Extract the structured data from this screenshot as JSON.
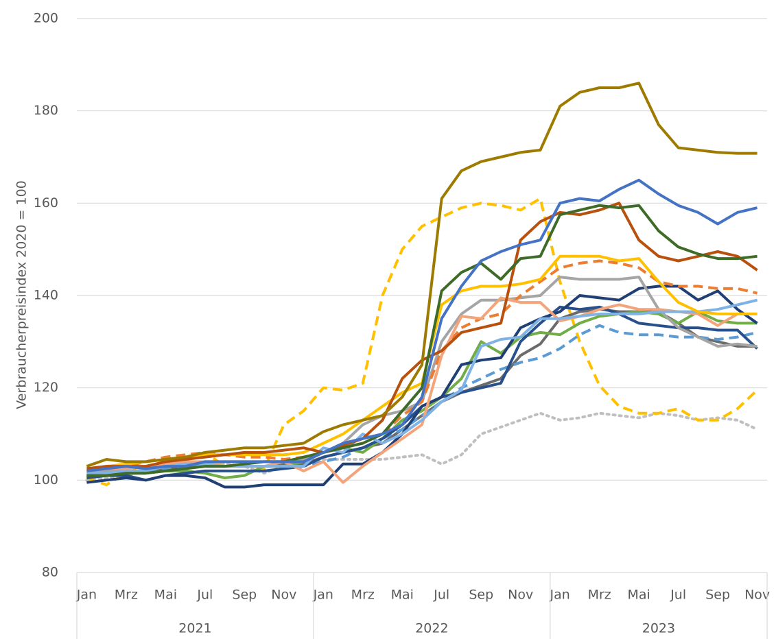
{
  "chart_data": {
    "type": "line",
    "y_label": "Verbraucherpreisindex 2020 = 100",
    "categories": [
      "Jan",
      null,
      "Mrz",
      null,
      "Mai",
      null,
      "Jul",
      null,
      "Sep",
      null,
      "Nov",
      null,
      "Jan",
      null,
      "Mrz",
      null,
      "Mai",
      null,
      "Jul",
      null,
      "Sep",
      null,
      "Nov",
      null,
      "Jan",
      null,
      "Mrz",
      null,
      "Mai",
      null,
      "Jul",
      null,
      "Sep",
      null,
      "Nov"
    ],
    "groups": [
      "2021",
      "2022",
      "2023"
    ],
    "ylim": [
      80,
      200
    ],
    "yticks": [
      80,
      100,
      120,
      140,
      160,
      180,
      200
    ],
    "grid": true,
    "series": [
      {
        "color": "#bfbfbf",
        "dash": "dotted",
        "values": [
          100,
          100.5,
          101,
          102,
          102.5,
          103,
          103.5,
          103.5,
          103,
          101.5,
          103,
          104,
          104.5,
          104.5,
          104.5,
          104.5,
          105,
          105.5,
          103.5,
          105.5,
          110,
          111.5,
          113,
          114.5,
          113,
          113.5,
          114.5,
          114,
          113.5,
          114.5,
          114,
          113,
          113.5,
          113,
          111
        ]
      },
      {
        "color": "#ffc000",
        "dash": "dashed",
        "values": [
          100.5,
          99,
          101.5,
          103,
          104,
          104.5,
          106,
          103,
          103.5,
          102.5,
          112,
          115,
          120,
          119.5,
          121,
          140,
          150,
          155,
          157,
          159,
          160,
          159.5,
          158.5,
          161,
          143,
          130,
          120.5,
          116,
          114.5,
          114.5,
          115.5,
          113,
          113,
          115.5,
          119.5
        ]
      },
      {
        "color": "#6b6b6b",
        "dash": "solid",
        "values": [
          101,
          101.5,
          102,
          102,
          102.5,
          103,
          103,
          103,
          103,
          103,
          103.5,
          103.5,
          105,
          106,
          107,
          108,
          111,
          114,
          117,
          119,
          120.5,
          122,
          127,
          129.5,
          135,
          136.5,
          137,
          136.5,
          136.5,
          136.5,
          134,
          131,
          130,
          129,
          129
        ]
      },
      {
        "color": "#5b9bd5",
        "dash": "dashed",
        "values": [
          101,
          101,
          101.5,
          102,
          102.5,
          103,
          103,
          103,
          103,
          103,
          103,
          103,
          104,
          105,
          107,
          109,
          111,
          114,
          117,
          120,
          122,
          124,
          125.5,
          126.5,
          128.5,
          131.5,
          133.5,
          132,
          131.5,
          131.5,
          131,
          131,
          130.5,
          131,
          132
        ]
      },
      {
        "color": "#70ad47",
        "dash": "solid",
        "values": [
          101,
          101,
          101.5,
          101.5,
          102,
          102,
          101.5,
          100.5,
          101,
          103,
          103,
          104,
          106,
          107,
          106,
          109,
          113,
          115,
          118,
          122,
          130,
          127.5,
          131,
          132,
          131.5,
          134,
          135.5,
          136,
          136.5,
          136,
          134,
          136.5,
          134.5,
          134,
          134
        ]
      },
      {
        "color": "#27508c",
        "dash": "solid",
        "values": [
          100.5,
          101,
          101,
          100,
          101,
          101.5,
          102,
          102,
          102,
          102,
          102.5,
          103,
          105,
          106,
          107,
          109,
          112,
          116,
          118,
          119,
          120,
          121,
          130,
          134,
          137.5,
          137,
          137.5,
          136,
          134,
          133.5,
          133,
          133,
          132.5,
          132.5,
          128.5
        ]
      },
      {
        "color": "#203f74",
        "dash": "solid",
        "values": [
          99.5,
          100,
          100.5,
          100,
          101,
          101,
          100.5,
          98.5,
          98.5,
          99,
          99,
          99,
          99,
          103.5,
          103.5,
          106,
          110,
          116,
          118,
          125,
          126,
          126.5,
          133,
          135,
          136.5,
          140,
          139.5,
          139,
          141.5,
          142,
          142,
          139,
          141,
          137,
          134
        ]
      },
      {
        "color": "#a5a5a5",
        "dash": "solid",
        "values": [
          101.5,
          102,
          102.5,
          103,
          103,
          103.5,
          104,
          104,
          104,
          104,
          104,
          104.5,
          106,
          108,
          112,
          114,
          115,
          117,
          130,
          136,
          139,
          139,
          139.5,
          140,
          144,
          143.5,
          143.5,
          143.5,
          144,
          137,
          133,
          131,
          129,
          129.5,
          129
        ]
      },
      {
        "color": "#ed7d31",
        "dash": "dashed",
        "values": [
          102,
          102.5,
          103,
          104,
          105,
          105.5,
          106,
          105.5,
          105,
          105,
          104.5,
          105,
          106,
          107,
          108,
          110,
          114,
          117,
          128,
          133,
          135,
          136,
          140,
          143,
          146,
          147,
          147.5,
          147,
          146,
          143,
          142,
          142,
          141.5,
          141.5,
          140.5
        ]
      },
      {
        "color": "#f4a47a",
        "dash": "solid",
        "values": [
          102,
          102.5,
          102.5,
          103,
          103.5,
          104,
          104,
          103,
          103,
          103,
          104,
          102,
          104,
          99.5,
          103,
          106,
          109,
          112,
          127,
          135.5,
          135,
          139.5,
          138.5,
          138.5,
          134.5,
          135.5,
          137,
          138,
          137,
          137,
          136.5,
          136,
          133.5,
          136,
          136
        ]
      },
      {
        "color": "#7fb2e5",
        "dash": "solid",
        "values": [
          101.5,
          101.5,
          102,
          102,
          103,
          103.5,
          103.5,
          103,
          103,
          103,
          103,
          103,
          107,
          106,
          110,
          108,
          110,
          113,
          117,
          119.5,
          129,
          130.5,
          131,
          135,
          135,
          135.5,
          136,
          136,
          136,
          136.5,
          136.5,
          136.5,
          137,
          138,
          139
        ]
      },
      {
        "color": "#ffc000",
        "dash": "solid",
        "values": [
          102,
          103,
          103.5,
          104,
          104.5,
          105,
          105.5,
          105.5,
          105.5,
          105.5,
          105.5,
          106,
          108,
          110,
          113,
          116,
          119,
          121,
          138,
          141,
          142,
          142,
          142.5,
          143.5,
          148.5,
          148.5,
          148.5,
          147.5,
          148,
          143,
          138.5,
          136.5,
          136,
          136,
          136
        ]
      },
      {
        "color": "#b8500e",
        "dash": "solid",
        "values": [
          102.5,
          103,
          103,
          103,
          104,
          104.5,
          105,
          105.5,
          106,
          106,
          106.5,
          107,
          106,
          107.5,
          109,
          113,
          122,
          126,
          128,
          132,
          133,
          134,
          152,
          156,
          158,
          157.5,
          158.5,
          160,
          152,
          148.5,
          147.5,
          148.5,
          149.5,
          148.5,
          145.5
        ]
      },
      {
        "color": "#3e6b28",
        "dash": "solid",
        "values": [
          101,
          101,
          101.5,
          101.5,
          102,
          102.5,
          103,
          103,
          103.5,
          104,
          104,
          105,
          106,
          107,
          108,
          110,
          115,
          120,
          141,
          145,
          147,
          143.5,
          148,
          148.5,
          157.5,
          158.5,
          159.5,
          159,
          159.5,
          154,
          150.5,
          149,
          148,
          148,
          148.5
        ]
      },
      {
        "color": "#4472c4",
        "dash": "solid",
        "values": [
          102,
          102.5,
          103,
          102.5,
          103,
          103,
          104,
          104,
          104,
          104,
          104,
          104,
          106,
          108,
          109,
          110,
          112,
          118,
          135,
          142,
          147.5,
          149.5,
          151,
          152,
          160,
          161,
          160.5,
          163,
          165,
          162,
          159.5,
          158,
          155.5,
          158,
          159
        ]
      },
      {
        "color": "#9c7b00",
        "dash": "solid",
        "values": [
          103,
          104.5,
          104,
          104,
          104.5,
          105,
          106,
          106.5,
          107,
          107,
          107.5,
          108,
          110.5,
          112,
          113,
          114,
          118,
          125,
          161,
          167,
          169,
          170,
          171,
          171.5,
          181,
          184,
          185,
          185,
          186,
          177,
          172,
          171.5,
          171,
          170.8,
          170.8
        ]
      }
    ]
  }
}
